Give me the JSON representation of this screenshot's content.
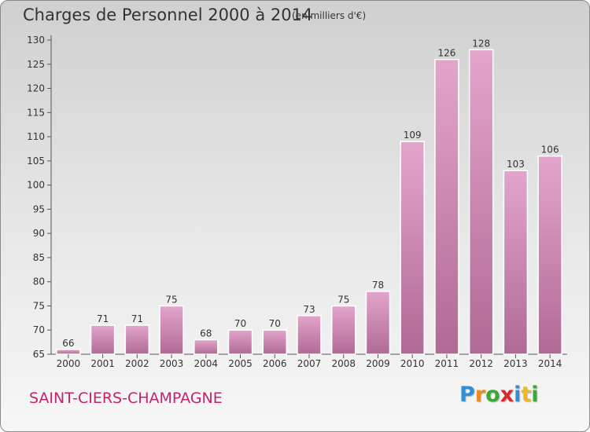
{
  "chart_data": {
    "type": "bar",
    "title": "Charges de Personnel 2000 à 2014",
    "subtitle": "(en milliers d'€)",
    "categories": [
      "2000",
      "2001",
      "2002",
      "2003",
      "2004",
      "2005",
      "2006",
      "2007",
      "2008",
      "2009",
      "2010",
      "2011",
      "2012",
      "2013",
      "2014"
    ],
    "values": [
      66,
      71,
      71,
      75,
      68,
      70,
      70,
      73,
      75,
      78,
      109,
      126,
      128,
      103,
      106
    ],
    "ylim": [
      65,
      130
    ],
    "yticks": [
      65,
      70,
      75,
      80,
      85,
      90,
      95,
      100,
      105,
      110,
      115,
      120,
      125,
      130
    ],
    "grid": false,
    "bar_color_light": "#e3a5cc",
    "bar_color_dark": "#b06a95"
  },
  "footer": {
    "location": "SAINT-CIERS-CHAMPAGNE",
    "location_color": "#c2246c"
  },
  "logo": {
    "letters": [
      "P",
      "r",
      "o",
      "x",
      "i",
      "t",
      "i"
    ],
    "colors": [
      "#2f8fd8",
      "#f08a1c",
      "#3aaa35",
      "#d8282e",
      "#2f8fd8",
      "#f0b81c",
      "#3aaa35"
    ]
  }
}
